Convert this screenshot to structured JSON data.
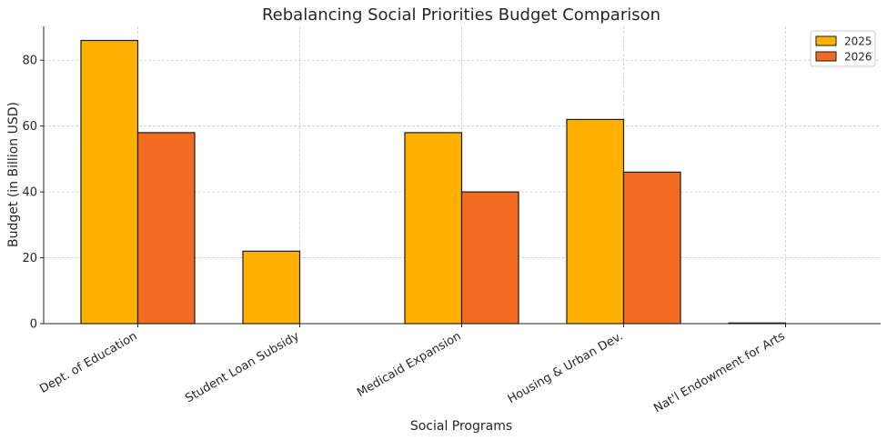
{
  "chart_data": {
    "type": "bar",
    "title": "Rebalancing Social Priorities Budget Comparison",
    "xlabel": "Social Programs",
    "ylabel": "Budget (in Billion USD)",
    "categories": [
      "Dept. of Education",
      "Student Loan Subsidy",
      "Medicaid Expansion",
      "Housing & Urban Dev.",
      "Nat'l Endowment for Arts"
    ],
    "series": [
      {
        "name": "2025",
        "values": [
          86,
          22,
          58,
          62,
          0.2
        ],
        "color": "#FFB000"
      },
      {
        "name": "2026",
        "values": [
          58,
          0,
          40,
          46,
          0
        ],
        "color": "#F26B21"
      }
    ],
    "ylim": [
      0,
      90
    ],
    "yticks": [
      0,
      20,
      40,
      60,
      80
    ],
    "grid": true,
    "legend_position": "top-right"
  }
}
